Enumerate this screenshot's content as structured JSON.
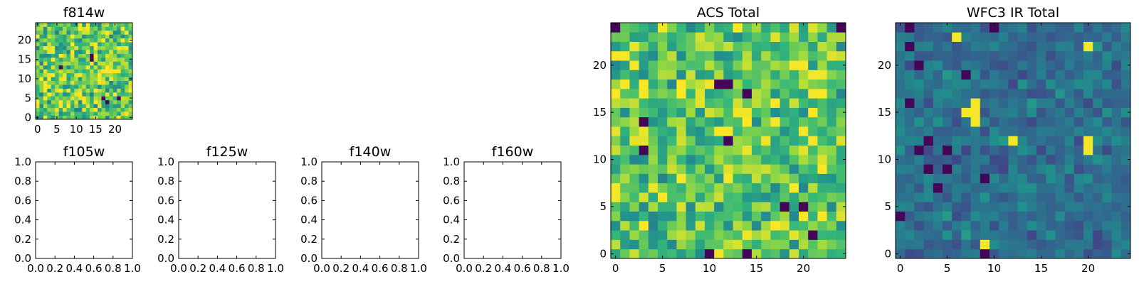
{
  "chart_data": [
    {
      "id": "f814w",
      "type": "heatmap",
      "title": "f814w",
      "grid_size": 25,
      "value_range": [
        0,
        1
      ],
      "seed": 11,
      "cold_cells": [
        [
          6,
          13
        ],
        [
          14,
          16
        ],
        [
          14,
          15
        ],
        [
          17,
          5
        ],
        [
          18,
          4
        ],
        [
          21,
          5
        ]
      ],
      "hot_cells": [
        [
          19,
          10
        ],
        [
          18,
          12
        ],
        [
          21,
          12
        ]
      ],
      "xlim": [
        -0.5,
        24.5
      ],
      "ylim": [
        -0.5,
        24.5
      ],
      "xticks": [
        0,
        5,
        10,
        15,
        20
      ],
      "yticks": [
        0,
        5,
        10,
        15,
        20
      ],
      "colormap": "viridis"
    },
    {
      "id": "f105w",
      "type": "empty",
      "title": "f105w",
      "xlim": [
        0,
        1
      ],
      "ylim": [
        0,
        1
      ],
      "xticks": [
        "0.0",
        "0.2",
        "0.4",
        "0.6",
        "0.8",
        "1.0"
      ],
      "yticks": [
        "0.0",
        "0.2",
        "0.4",
        "0.6",
        "0.8",
        "1.0"
      ]
    },
    {
      "id": "f125w",
      "type": "empty",
      "title": "f125w",
      "xlim": [
        0,
        1
      ],
      "ylim": [
        0,
        1
      ],
      "xticks": [
        "0.0",
        "0.2",
        "0.4",
        "0.6",
        "0.8",
        "1.0"
      ],
      "yticks": [
        "0.0",
        "0.2",
        "0.4",
        "0.6",
        "0.8",
        "1.0"
      ]
    },
    {
      "id": "f140w",
      "type": "empty",
      "title": "f140w",
      "xlim": [
        0,
        1
      ],
      "ylim": [
        0,
        1
      ],
      "xticks": [
        "0.0",
        "0.2",
        "0.4",
        "0.6",
        "0.8",
        "1.0"
      ],
      "yticks": [
        "0.0",
        "0.2",
        "0.4",
        "0.6",
        "0.8",
        "1.0"
      ]
    },
    {
      "id": "f160w",
      "type": "empty",
      "title": "f160w",
      "xlim": [
        0,
        1
      ],
      "ylim": [
        0,
        1
      ],
      "xticks": [
        "0.0",
        "0.2",
        "0.4",
        "0.6",
        "0.8",
        "1.0"
      ],
      "yticks": [
        "0.0",
        "0.2",
        "0.4",
        "0.6",
        "0.8",
        "1.0"
      ]
    },
    {
      "id": "acs-total",
      "type": "heatmap",
      "title": "ACS Total",
      "grid_size": 25,
      "value_range": [
        0,
        1
      ],
      "seed": 23,
      "cold_cells": [
        [
          0,
          24
        ],
        [
          24,
          24
        ],
        [
          11,
          18
        ],
        [
          12,
          18
        ],
        [
          14,
          17
        ],
        [
          3,
          14
        ],
        [
          12,
          12
        ],
        [
          3,
          11
        ],
        [
          18,
          5
        ],
        [
          20,
          5
        ],
        [
          21,
          2
        ],
        [
          10,
          0
        ],
        [
          14,
          0
        ]
      ],
      "hot_cells": [
        [
          5,
          24
        ],
        [
          2,
          20
        ],
        [
          19,
          20
        ],
        [
          20,
          20
        ],
        [
          21,
          19
        ],
        [
          3,
          17
        ],
        [
          21,
          17
        ],
        [
          17,
          14
        ],
        [
          20,
          13
        ],
        [
          21,
          12
        ],
        [
          0,
          7
        ],
        [
          0,
          6
        ],
        [
          7,
          8
        ],
        [
          12,
          8
        ]
      ],
      "xlim": [
        -0.5,
        24.5
      ],
      "ylim": [
        -0.5,
        24.5
      ],
      "xticks": [
        0,
        5,
        10,
        15,
        20
      ],
      "yticks": [
        0,
        5,
        10,
        15,
        20
      ],
      "colormap": "viridis"
    },
    {
      "id": "wfc3-ir-total",
      "type": "heatmap",
      "title": "WFC3 IR Total",
      "grid_size": 25,
      "value_range": [
        0,
        1
      ],
      "seed": 37,
      "cold_cells": [
        [
          1,
          24
        ],
        [
          10,
          24
        ],
        [
          1,
          22
        ],
        [
          2,
          20
        ],
        [
          7,
          19
        ],
        [
          1,
          16
        ],
        [
          3,
          12
        ],
        [
          2,
          11
        ],
        [
          5,
          11
        ],
        [
          3,
          9
        ],
        [
          5,
          9
        ],
        [
          9,
          8
        ],
        [
          4,
          7
        ],
        [
          0,
          4
        ],
        [
          9,
          0
        ]
      ],
      "hot_cells": [
        [
          8,
          16
        ],
        [
          7,
          15
        ],
        [
          8,
          15
        ],
        [
          8,
          14
        ],
        [
          12,
          12
        ],
        [
          20,
          12
        ],
        [
          20,
          11
        ],
        [
          9,
          1
        ],
        [
          6,
          23
        ],
        [
          20,
          22
        ]
      ],
      "xlim": [
        -0.5,
        24.5
      ],
      "ylim": [
        -0.5,
        24.5
      ],
      "xticks": [
        0,
        5,
        10,
        15,
        20
      ],
      "yticks": [
        0,
        5,
        10,
        15,
        20
      ],
      "colormap": "viridis"
    }
  ]
}
